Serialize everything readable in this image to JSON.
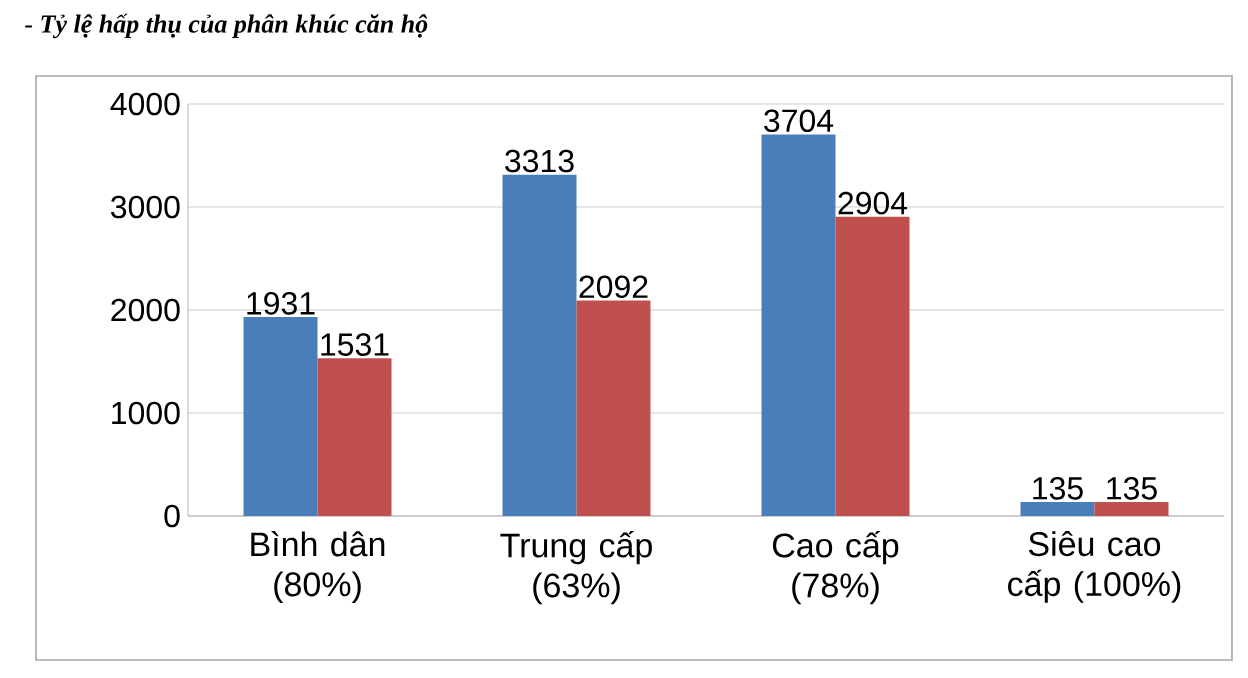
{
  "chart_data": {
    "type": "bar",
    "title": "- Tỷ lệ hấp thụ của phân khúc căn hộ",
    "categories": [
      "Bình dân (80%)",
      "Trung cấp (63%)",
      "Cao cấp (78%)",
      "Siêu cao cấp (100%)"
    ],
    "series": [
      {
        "color": "#4a7ebb",
        "values": [
          1931,
          3313,
          3704,
          135
        ]
      },
      {
        "color": "#c0504d",
        "values": [
          1531,
          2092,
          2904,
          135
        ]
      }
    ],
    "ylim": [
      0,
      4000
    ],
    "yticks": [
      0,
      1000,
      2000,
      3000,
      4000
    ],
    "grid": "y",
    "data_labels": true
  }
}
